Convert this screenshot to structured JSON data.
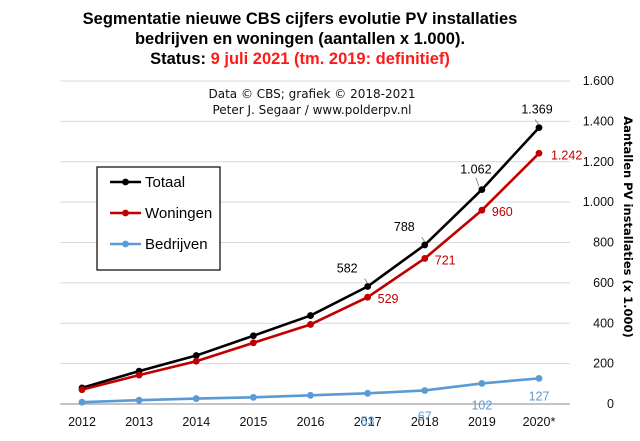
{
  "chart_data": {
    "type": "line",
    "title_line1": "Segmentatie nieuwe CBS cijfers evolutie PV installaties",
    "title_line2": "bedrijven en woningen (aantallen x 1.000).",
    "title_line3_prefix": "Status: ",
    "title_line3_highlight": "9 juli 2021 (tm. 2019: definitief)",
    "credit_line1": "Data © CBS; grafiek © 2018-2021",
    "credit_line2": "Peter J. Segaar / www.polderpv.nl",
    "ylabel": "Aantallen PV installaties (x 1.000)",
    "ylim": [
      0,
      1600
    ],
    "yticks": [
      0,
      200,
      400,
      600,
      800,
      1000,
      1200,
      1400,
      1600
    ],
    "ytick_labels": [
      "0",
      "200",
      "400",
      "600",
      "800",
      "1.000",
      "1.200",
      "1.400",
      "1.600"
    ],
    "categories": [
      "2012",
      "2013",
      "2014",
      "2015",
      "2016",
      "2017",
      "2018",
      "2019",
      "2020*"
    ],
    "grid": "horizontal",
    "legend_position": "left",
    "series": [
      {
        "name": "Totaal",
        "color": "#000000",
        "values": [
          80,
          163,
          240,
          338,
          438,
          582,
          788,
          1062,
          1369
        ],
        "labels": {
          "5": "582",
          "6": "788",
          "7": "1.062",
          "8": "1.369"
        }
      },
      {
        "name": "Woningen",
        "color": "#c00000",
        "values": [
          71,
          143,
          212,
          303,
          394,
          529,
          721,
          960,
          1242
        ],
        "labels": {
          "5": "529",
          "6": "721",
          "7": "960",
          "8": "1.242"
        }
      },
      {
        "name": "Bedrijven",
        "color": "#5b9bd5",
        "values": [
          9,
          19,
          27,
          33,
          43,
          53,
          67,
          102,
          127
        ],
        "labels": {
          "5": "53",
          "6": "67",
          "7": "102",
          "8": "127"
        }
      }
    ]
  }
}
